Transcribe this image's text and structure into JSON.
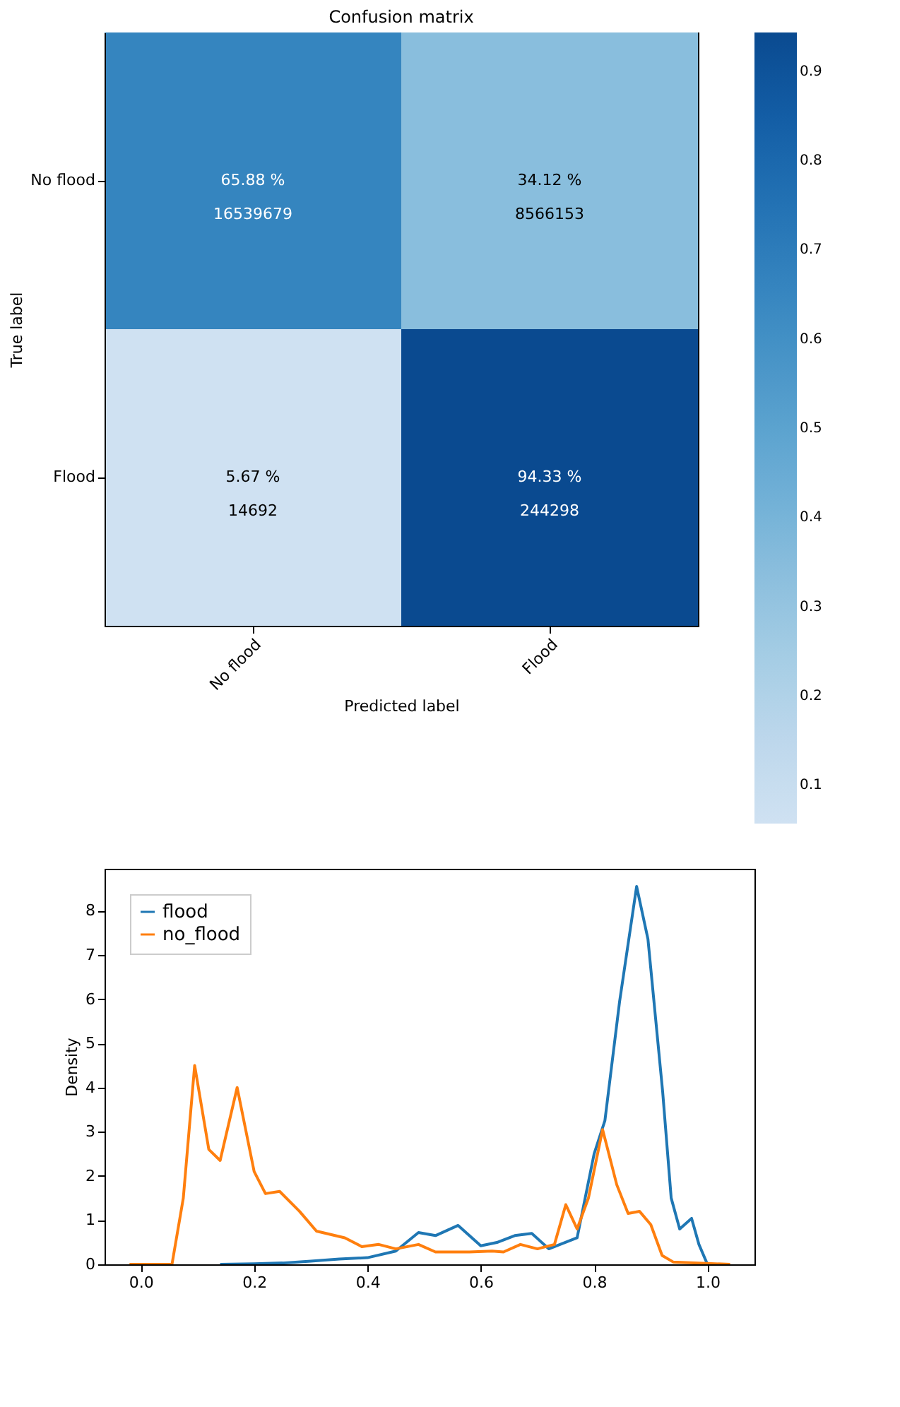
{
  "chart_data": [
    {
      "type": "heatmap",
      "title": "Confusion matrix",
      "xlabel": "Predicted label",
      "ylabel": "True label",
      "categories": [
        "No flood",
        "Flood"
      ],
      "y_categories": [
        "No flood",
        "Flood"
      ],
      "cells": [
        [
          0.6588,
          0.3412
        ],
        [
          0.0567,
          0.9433
        ]
      ],
      "cell_labels": [
        [
          "65.88 %\n16539679",
          "34.12 %\n8566153"
        ],
        [
          "5.67 %\n14692",
          "94.33 %\n244298"
        ]
      ],
      "clim": [
        0.0567,
        0.9433
      ],
      "cticks": [
        0.1,
        0.2,
        0.3,
        0.4,
        0.5,
        0.6,
        0.7,
        0.8,
        0.9
      ]
    },
    {
      "type": "line",
      "ylabel": "Density",
      "legend": "top left",
      "grid": false,
      "xlim": [
        -0.064,
        1.083
      ],
      "ylim": [
        0,
        8.95
      ],
      "xticks": [
        {
          "value": 0,
          "label": "0.0"
        },
        {
          "value": 0.2,
          "label": "0.2"
        },
        {
          "value": 0.4,
          "label": "0.4"
        },
        {
          "value": 0.6,
          "label": "0.6"
        },
        {
          "value": 0.8,
          "label": "0.8"
        },
        {
          "value": 1,
          "label": "1.0"
        }
      ],
      "yticks": [
        0,
        1,
        2,
        3,
        4,
        5,
        6,
        7,
        8
      ],
      "series": [
        {
          "name": "flood",
          "color": "#1f77b4",
          "x": [
            0.14,
            0.2,
            0.25,
            0.3,
            0.35,
            0.4,
            0.45,
            0.49,
            0.52,
            0.56,
            0.6,
            0.63,
            0.66,
            0.69,
            0.72,
            0.77,
            0.8,
            0.819,
            0.845,
            0.875,
            0.895,
            0.921,
            0.936,
            0.951,
            0.972,
            0.985,
            1.0,
            1.03
          ],
          "values": [
            0,
            0.01,
            0.03,
            0.07,
            0.12,
            0.15,
            0.3,
            0.72,
            0.65,
            0.88,
            0.42,
            0.5,
            0.65,
            0.7,
            0.35,
            0.6,
            2.5,
            3.25,
            5.95,
            8.55,
            7.36,
            3.9,
            1.5,
            0.8,
            1.04,
            0.45,
            0,
            0
          ]
        },
        {
          "name": "no_flood",
          "color": "#ff7f0e",
          "x": [
            -0.02,
            0.055,
            0.075,
            0.095,
            0.12,
            0.14,
            0.17,
            0.2,
            0.22,
            0.245,
            0.28,
            0.31,
            0.36,
            0.39,
            0.42,
            0.45,
            0.49,
            0.52,
            0.58,
            0.62,
            0.64,
            0.67,
            0.7,
            0.73,
            0.75,
            0.77,
            0.79,
            0.815,
            0.84,
            0.86,
            0.88,
            0.9,
            0.92,
            0.94,
            1.04
          ],
          "values": [
            0,
            0,
            1.5,
            4.5,
            2.6,
            2.35,
            4.0,
            2.1,
            1.6,
            1.65,
            1.2,
            0.75,
            0.6,
            0.4,
            0.45,
            0.35,
            0.45,
            0.28,
            0.28,
            0.3,
            0.28,
            0.45,
            0.35,
            0.45,
            1.35,
            0.8,
            1.5,
            3.05,
            1.8,
            1.15,
            1.2,
            0.9,
            0.2,
            0.05,
            0
          ]
        }
      ]
    }
  ]
}
